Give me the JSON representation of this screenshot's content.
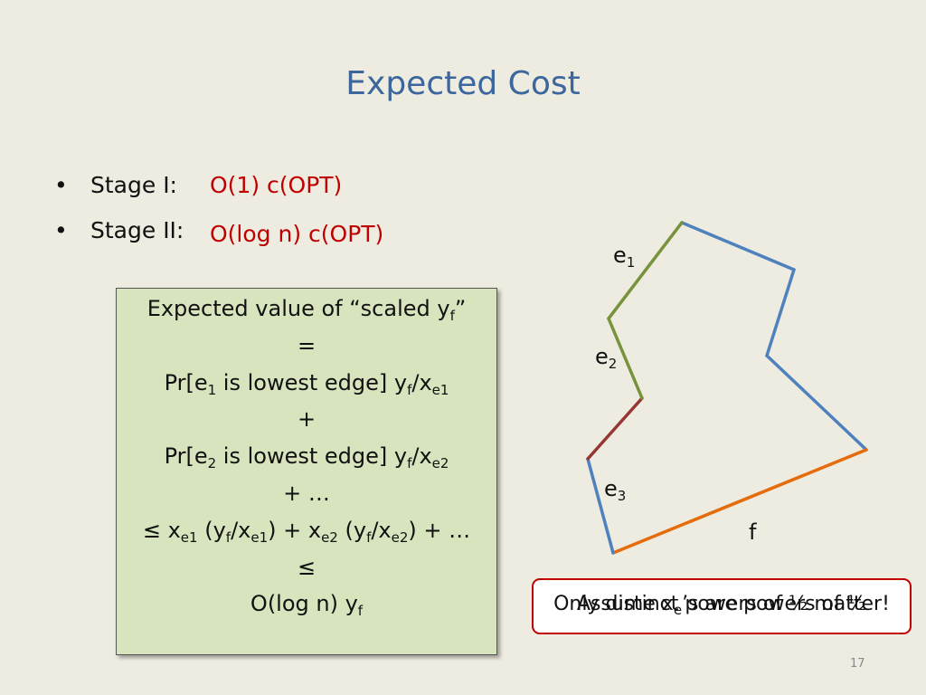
{
  "title": "Expected Cost",
  "bullets": [
    {
      "marker": "•",
      "label": "Stage I:",
      "value": "O(1) c(OPT)"
    },
    {
      "marker": "•",
      "label": "Stage II:",
      "value": "O(log n) c(OPT)"
    }
  ],
  "box": {
    "lines": [
      [
        "Expected value of “scaled y",
        "f",
        "”"
      ],
      [
        "="
      ],
      [
        "Pr[e",
        "1",
        " is lowest edge] y",
        "f",
        "/x",
        "e1"
      ],
      [
        "+"
      ],
      [
        "Pr[e",
        "2",
        " is lowest edge] y",
        "f",
        "/x",
        "e2"
      ],
      [
        "+ …"
      ],
      [
        "≤ x",
        "e1",
        " (y",
        "f",
        "/x",
        "e1",
        ") + x",
        "e2",
        " (y",
        "f",
        "/x",
        "e2",
        ") + …"
      ],
      [
        "≤"
      ],
      [
        "O(log n) y",
        "f"
      ]
    ]
  },
  "diagram": {
    "edge_labels": [
      [
        "e",
        "1"
      ],
      [
        "e",
        "2"
      ],
      [
        "e",
        "3"
      ],
      [
        "f"
      ]
    ]
  },
  "callout": {
    "texts": [
      [
        "Only distinct powers of ½ matter!"
      ],
      [
        "Assume x",
        "e",
        "’s are powers of ½"
      ]
    ]
  },
  "page_number": "17"
}
